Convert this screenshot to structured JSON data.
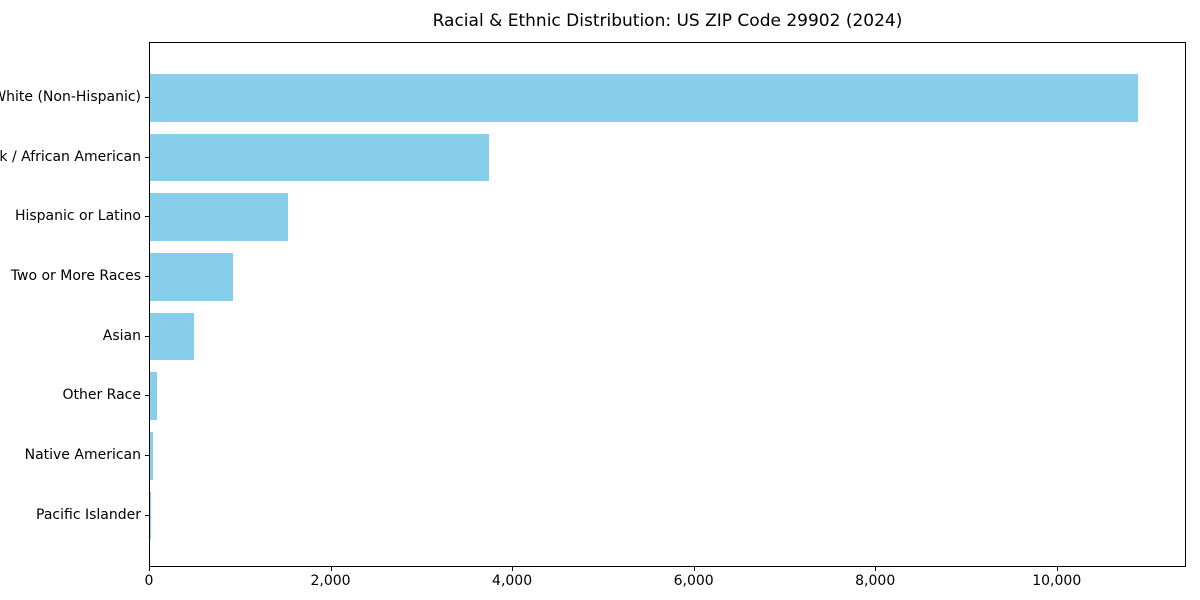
{
  "chart_data": {
    "type": "bar",
    "orientation": "horizontal",
    "title": "Racial & Ethnic Distribution: US ZIP Code 29902 (2024)",
    "categories": [
      "White (Non-Hispanic)",
      "Black / African American",
      "Hispanic or Latino",
      "Two or More Races",
      "Asian",
      "Other Race",
      "Native American",
      "Pacific Islander"
    ],
    "values": [
      10880,
      3730,
      1520,
      915,
      485,
      75,
      30,
      8
    ],
    "xlabel": "",
    "ylabel": "",
    "xlim": [
      0,
      11424
    ],
    "x_ticks": [
      0,
      2000,
      4000,
      6000,
      8000,
      10000
    ],
    "x_tick_labels": [
      "0",
      "2,000",
      "4,000",
      "6,000",
      "8,000",
      "10,000"
    ],
    "bar_color": "#87CEEB",
    "frame_color": "#000000",
    "background_color": "#ffffff",
    "grid": false,
    "legend": null
  }
}
